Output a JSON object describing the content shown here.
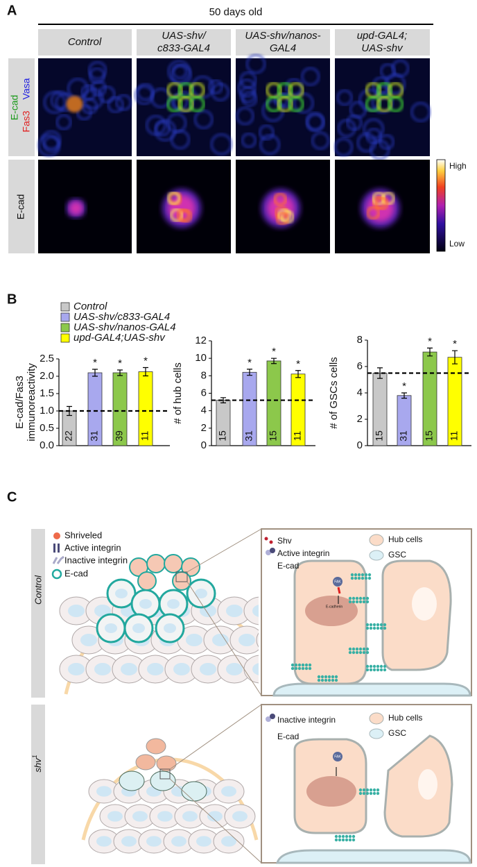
{
  "panel_a": {
    "label": "A",
    "title": "50 days old",
    "columns": [
      [
        "Control"
      ],
      [
        "UAS-shv/",
        "c833-GAL4"
      ],
      [
        "UAS-shv/nanos-",
        "GAL4"
      ],
      [
        "upd-GAL4;",
        "UAS-shv"
      ]
    ],
    "row_labels": [
      [
        "E-cad",
        "Fas3",
        "Vasa"
      ],
      [
        "E-cad"
      ]
    ],
    "colorbar": {
      "high": "High",
      "low": "Low"
    }
  },
  "panel_b": {
    "label": "B",
    "legend": [
      {
        "name": "Control",
        "color": "#c8c8c8"
      },
      {
        "name": "UAS-shv/c833-GAL4",
        "color": "#a8a8ee"
      },
      {
        "name": "UAS-shv/nanos-GAL4",
        "color": "#8cc84b"
      },
      {
        "name": "upd-GAL4;UAS-shv",
        "color": "#ffff00"
      }
    ]
  },
  "chart_data": [
    {
      "type": "bar",
      "ylabel": [
        "E-cad/Fas3",
        "immunoreactivity"
      ],
      "values": [
        1.0,
        2.1,
        2.1,
        2.13
      ],
      "errors": [
        0.13,
        0.1,
        0.08,
        0.12
      ],
      "sample_sizes": [
        22,
        31,
        39,
        11
      ],
      "stars": [
        null,
        "*",
        "*",
        "*"
      ],
      "reference_line": 1.0,
      "ylim": [
        0,
        2.5
      ],
      "yticks": [
        {
          "value": 0,
          "label": "0.0"
        },
        0.5,
        {
          "value": 1,
          "label": "1.0"
        },
        1.5,
        {
          "value": 2,
          "label": "2.0"
        },
        2.5
      ]
    },
    {
      "type": "bar",
      "ylabel": [
        "# of hub cells"
      ],
      "values": [
        5.2,
        8.4,
        9.7,
        8.2
      ],
      "errors": [
        0.3,
        0.35,
        0.3,
        0.4
      ],
      "sample_sizes": [
        15,
        31,
        15,
        11
      ],
      "stars": [
        null,
        "*",
        "*",
        "*"
      ],
      "reference_line": 5.2,
      "ylim": [
        0,
        12
      ],
      "yticks": [
        0,
        2,
        4,
        6,
        8,
        10,
        12
      ]
    },
    {
      "type": "bar",
      "ylabel": [
        "# of GSCs cells"
      ],
      "values": [
        5.5,
        3.8,
        7.1,
        6.7
      ],
      "errors": [
        0.4,
        0.2,
        0.3,
        0.5
      ],
      "sample_sizes": [
        15,
        31,
        15,
        11
      ],
      "stars": [
        null,
        "*",
        "*",
        "*"
      ],
      "reference_line": 5.5,
      "ylim": [
        0,
        8
      ],
      "yticks": [
        0,
        2,
        4,
        6,
        8
      ]
    }
  ],
  "panel_c": {
    "label": "C",
    "rows": [
      {
        "name": "Control",
        "legend": [
          "Shriveled",
          "Active integrin",
          "Inactive integrin",
          "E-cad"
        ],
        "zoom_legend": [
          "Shv",
          "Active integrin",
          "E-cad"
        ],
        "zoom_key": [
          "Hub cells",
          "GSC"
        ],
        "fak": "FAK",
        "gene": "E-cadherin"
      },
      {
        "name": "shv",
        "sup": "1",
        "zoom_legend": [
          "Inactive integrin",
          "E-cad"
        ],
        "zoom_key": [
          "Hub cells",
          "GSC"
        ],
        "fak": "FAK"
      }
    ]
  }
}
